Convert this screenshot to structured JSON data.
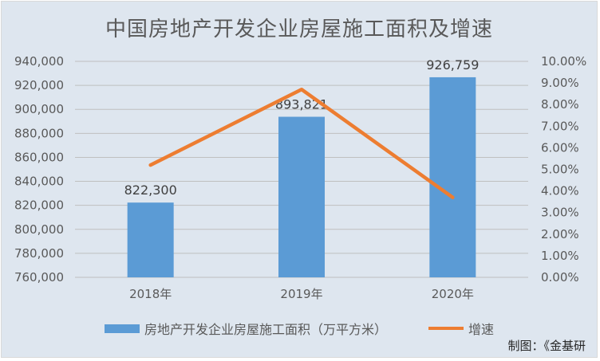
{
  "chart_data": {
    "type": "bar",
    "title": "中国房地产开发企业房屋施工面积及增速",
    "categories": [
      "2018年",
      "2019年",
      "2020年"
    ],
    "series": [
      {
        "name": "房地产开发企业房屋施工面积（万平方米）",
        "type": "bar",
        "axis": "left",
        "values": [
          822300,
          893821,
          926759
        ],
        "data_labels": [
          "822,300",
          "893,821",
          "926,759"
        ]
      },
      {
        "name": "增速",
        "type": "line",
        "axis": "right",
        "values": [
          0.052,
          0.087,
          0.037
        ]
      }
    ],
    "y_left": {
      "ylim": [
        760000,
        940000
      ],
      "ticks": [
        760000,
        780000,
        800000,
        820000,
        840000,
        860000,
        880000,
        900000,
        920000,
        940000
      ],
      "tick_labels": [
        "760,000",
        "780,000",
        "800,000",
        "820,000",
        "840,000",
        "860,000",
        "880,000",
        "900,000",
        "920,000",
        "940,000"
      ]
    },
    "y_right": {
      "ylim": [
        0,
        0.1
      ],
      "ticks": [
        0,
        0.01,
        0.02,
        0.03,
        0.04,
        0.05,
        0.06,
        0.07,
        0.08,
        0.09,
        0.1
      ],
      "tick_labels": [
        "0.00%",
        "1.00%",
        "2.00%",
        "3.00%",
        "4.00%",
        "5.00%",
        "6.00%",
        "7.00%",
        "8.00%",
        "9.00%",
        "10.00%"
      ]
    },
    "grid": true,
    "legend_position": "bottom",
    "colors": {
      "bar": "#5b9bd5",
      "line": "#ed7d31",
      "background": "#dee6ef",
      "grid": "#bfbfbf"
    }
  },
  "source_note": "制图：《金基研"
}
